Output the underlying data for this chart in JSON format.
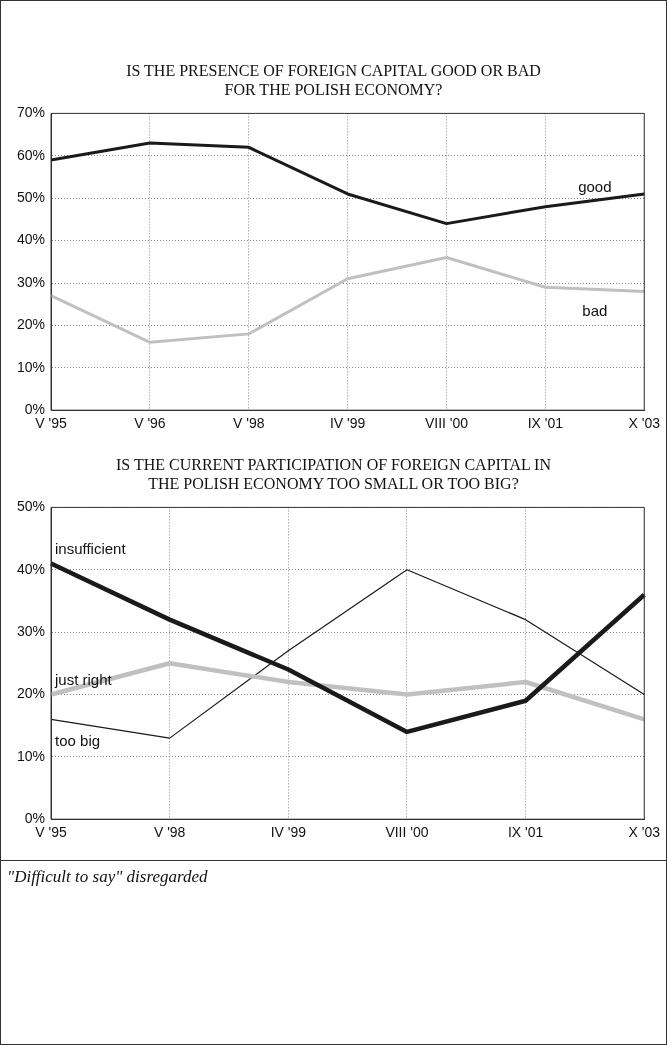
{
  "chart_data": [
    {
      "type": "line",
      "title": "IS THE PRESENCE OF FOREIGN CAPITAL GOOD OR BAD FOR THE POLISH ECONOMY?",
      "categories": [
        "V '95",
        "V '96",
        "V '98",
        "IV '99",
        "VIII '00",
        "IX '01",
        "X '03"
      ],
      "series": [
        {
          "name": "good",
          "color": "#1a1a1a",
          "values": [
            59,
            63,
            62,
            51,
            44,
            48,
            51
          ]
        },
        {
          "name": "bad",
          "color": "#c0c0c0",
          "values": [
            27,
            16,
            18,
            31,
            36,
            29,
            28
          ]
        }
      ],
      "ylim": [
        0,
        70
      ],
      "yticks": [
        {
          "value": 0,
          "label": "0%"
        },
        {
          "value": 10,
          "label": "10%"
        },
        {
          "value": 20,
          "label": "20%"
        },
        {
          "value": 30,
          "label": "30%"
        },
        {
          "value": 40,
          "label": "40%"
        },
        {
          "value": 50,
          "label": "50%"
        },
        {
          "value": 60,
          "label": "60%"
        },
        {
          "value": 70,
          "label": "70%"
        }
      ],
      "grid": true,
      "legend": false,
      "marker": "none",
      "line_style": "solid"
    },
    {
      "type": "line",
      "title": "IS THE CURRENT PARTICIPATION OF FOREIGN CAPITAL IN THE POLISH ECONOMY TOO SMALL OR TOO BIG?",
      "categories": [
        "V '95",
        "V '98",
        "IV '99",
        "VIII '00",
        "IX '01",
        "X '03"
      ],
      "series": [
        {
          "name": "insufficient",
          "color": "#1a1a1a",
          "values": [
            41,
            32,
            24,
            14,
            19,
            36
          ]
        },
        {
          "name": "just right",
          "color": "#c0c0c0",
          "values": [
            20,
            25,
            22,
            20,
            22,
            16
          ]
        },
        {
          "name": "too big",
          "color": "#1a1a1a",
          "values": [
            16,
            13,
            27,
            40,
            32,
            20
          ]
        }
      ],
      "ylim": [
        0,
        50
      ],
      "yticks": [
        {
          "value": 0,
          "label": "0%"
        },
        {
          "value": 10,
          "label": "10%"
        },
        {
          "value": 20,
          "label": "20%"
        },
        {
          "value": 30,
          "label": "30%"
        },
        {
          "value": 40,
          "label": "40%"
        },
        {
          "value": 50,
          "label": "50%"
        }
      ],
      "grid": true,
      "legend": false,
      "marker": "none",
      "line_style": "solid",
      "annotations": [
        "\"Difficult to say\" disregarded"
      ]
    }
  ]
}
